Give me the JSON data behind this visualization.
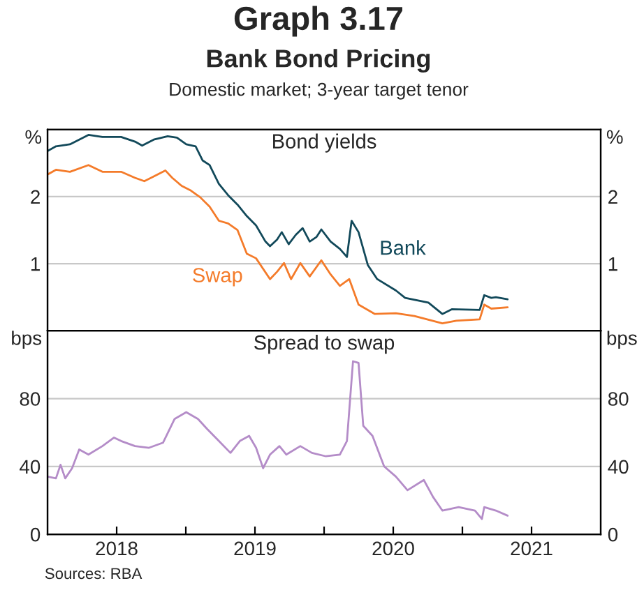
{
  "chart_data": [
    {
      "type": "line",
      "title": "Bond yields",
      "ylabel": "%",
      "y2label": "%",
      "annotations": [
        "Graph 3.17",
        "Bank Bond Pricing",
        "Domestic market; 3-year target tenor"
      ],
      "xlim": [
        2018,
        2022
      ],
      "ylim": [
        0,
        3
      ],
      "yticks": [
        1,
        2
      ],
      "y2lim": [
        0,
        3
      ],
      "y2ticks": [
        1,
        2
      ],
      "tick_labels": "y",
      "grid": "y",
      "legend": false,
      "series": [
        {
          "name": "Bank",
          "color": "#12495a",
          "x": [
            2018.0,
            2018.061,
            2018.162,
            2018.296,
            2018.397,
            2018.532,
            2018.633,
            2018.684,
            2018.768,
            2018.869,
            2018.936,
            2019.003,
            2019.071,
            2019.121,
            2019.172,
            2019.239,
            2019.306,
            2019.374,
            2019.441,
            2019.508,
            2019.576,
            2019.609,
            2019.66,
            2019.694,
            2019.744,
            2019.795,
            2019.845,
            2019.896,
            2019.946,
            2019.98,
            2020.047,
            2020.114,
            2020.165,
            2020.199,
            2020.249,
            2020.316,
            2020.384,
            2020.519,
            2020.586,
            2020.754,
            2020.855,
            2020.923,
            2021.125,
            2021.158,
            2021.209,
            2021.242,
            2021.327
          ],
          "values": [
            2.68,
            2.75,
            2.78,
            2.92,
            2.89,
            2.89,
            2.82,
            2.76,
            2.85,
            2.9,
            2.88,
            2.78,
            2.75,
            2.54,
            2.47,
            2.19,
            2.02,
            1.88,
            1.71,
            1.57,
            1.33,
            1.26,
            1.36,
            1.47,
            1.29,
            1.43,
            1.53,
            1.33,
            1.4,
            1.51,
            1.33,
            1.22,
            1.1,
            1.64,
            1.47,
            0.98,
            0.77,
            0.6,
            0.49,
            0.42,
            0.25,
            0.32,
            0.31,
            0.53,
            0.49,
            0.5,
            0.47
          ]
        },
        {
          "name": "Swap",
          "color": "#f47b2a",
          "x": [
            2018.0,
            2018.061,
            2018.162,
            2018.296,
            2018.397,
            2018.532,
            2018.633,
            2018.7,
            2018.768,
            2018.852,
            2018.902,
            2018.97,
            2019.037,
            2019.104,
            2019.172,
            2019.239,
            2019.306,
            2019.374,
            2019.441,
            2019.508,
            2019.609,
            2019.66,
            2019.71,
            2019.761,
            2019.828,
            2019.896,
            2019.98,
            2020.047,
            2020.114,
            2020.182,
            2020.249,
            2020.367,
            2020.519,
            2020.653,
            2020.855,
            2020.956,
            2021.125,
            2021.158,
            2021.209,
            2021.327
          ],
          "values": [
            2.33,
            2.4,
            2.37,
            2.47,
            2.37,
            2.37,
            2.28,
            2.23,
            2.3,
            2.39,
            2.28,
            2.16,
            2.09,
            1.99,
            1.85,
            1.64,
            1.6,
            1.5,
            1.15,
            1.08,
            0.77,
            0.88,
            1.01,
            0.77,
            1.01,
            0.81,
            1.05,
            0.84,
            0.67,
            0.77,
            0.39,
            0.25,
            0.26,
            0.22,
            0.11,
            0.15,
            0.17,
            0.39,
            0.33,
            0.35
          ]
        }
      ]
    },
    {
      "type": "line",
      "title": "Spread to swap",
      "ylabel": "bps",
      "y2label": "bps",
      "annotations": [
        "Sources: RBA"
      ],
      "xlim": [
        2018,
        2022
      ],
      "ylim": [
        0,
        120
      ],
      "yticks": [
        0,
        40,
        80
      ],
      "y2lim": [
        0,
        120
      ],
      "y2ticks": [
        0,
        40,
        80
      ],
      "xticks": [
        {
          "value": 2018.5,
          "label": "2018"
        },
        {
          "value": 2019,
          "label": null
        },
        {
          "value": 2019.5,
          "label": "2019"
        },
        {
          "value": 2020,
          "label": null
        },
        {
          "value": 2020.5,
          "label": "2020"
        },
        {
          "value": 2021,
          "label": null
        },
        {
          "value": 2021.5,
          "label": "2021"
        }
      ],
      "grid": "y",
      "legend": false,
      "series": [
        {
          "color": "#b48cc8",
          "x": [
            2018.0,
            2018.061,
            2018.094,
            2018.128,
            2018.178,
            2018.229,
            2018.296,
            2018.397,
            2018.481,
            2018.532,
            2018.633,
            2018.734,
            2018.835,
            2018.919,
            2019.003,
            2019.088,
            2019.155,
            2019.239,
            2019.323,
            2019.391,
            2019.458,
            2019.508,
            2019.559,
            2019.609,
            2019.677,
            2019.727,
            2019.828,
            2019.912,
            2020.013,
            2020.114,
            2020.165,
            2020.209,
            2020.249,
            2020.283,
            2020.35,
            2020.434,
            2020.519,
            2020.603,
            2020.721,
            2020.788,
            2020.855,
            2020.973,
            2021.091,
            2021.141,
            2021.158,
            2021.242,
            2021.327
          ],
          "values": [
            34,
            33,
            41,
            33,
            39,
            50,
            47,
            52,
            57,
            55,
            52,
            51,
            54,
            68,
            72,
            68,
            62,
            55,
            48,
            55,
            58,
            51,
            39,
            47,
            52,
            47,
            52,
            48,
            46,
            47,
            55,
            102,
            101,
            64,
            58,
            40,
            34,
            26,
            32,
            22,
            14,
            16,
            14,
            9,
            16,
            14,
            11
          ]
        }
      ]
    }
  ]
}
